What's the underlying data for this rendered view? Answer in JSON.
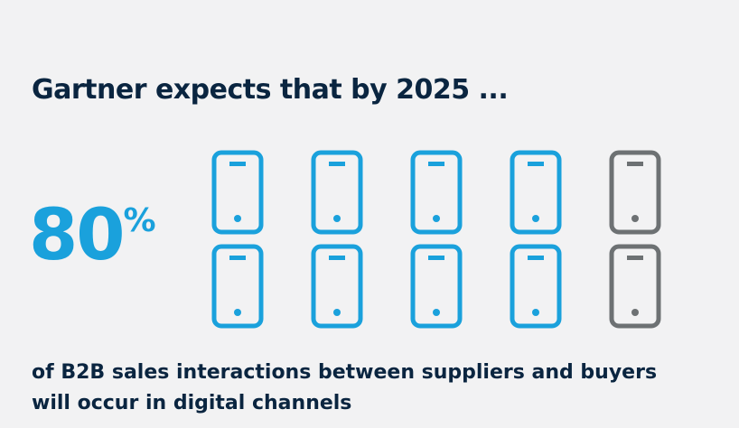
{
  "headline": "Gartner expects that by 2025 ...",
  "stat": {
    "number": "80",
    "unit": "%"
  },
  "caption": "of B2B sales interactions between suppliers and buyers will occur in digital channels",
  "icon_grid": {
    "icon": "smartphone-icon",
    "total": 10,
    "highlighted": 8,
    "highlight_color": "#1aa1dc",
    "muted_color": "#6d7173"
  }
}
